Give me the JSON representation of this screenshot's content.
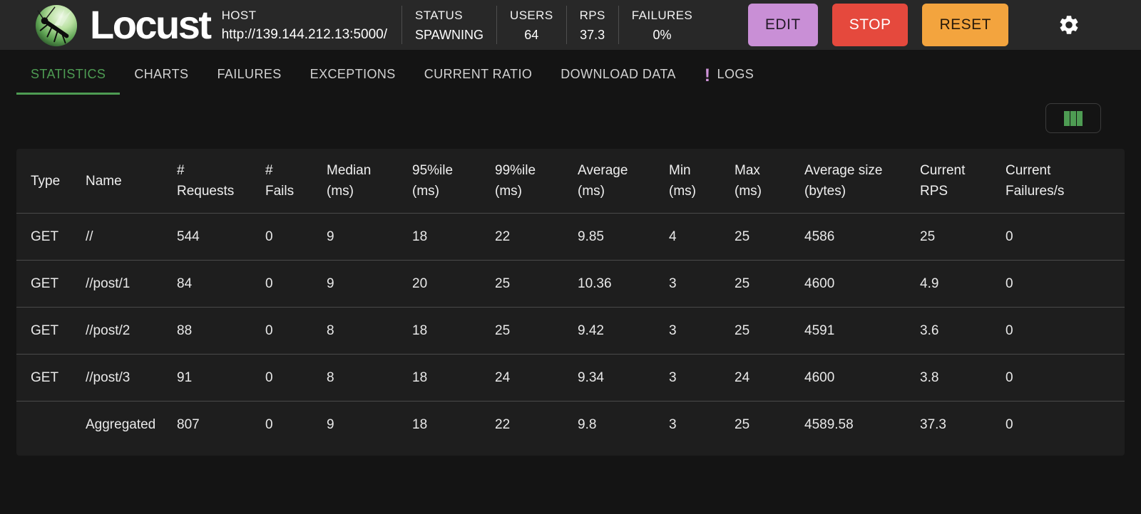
{
  "colors": {
    "accent_green": "#4e9c53",
    "edit_button_bg": "#c98fd6",
    "stop_button_bg": "#e5493d",
    "reset_button_bg": "#f3a43e",
    "logs_alert": "#ce93d8",
    "topbar_bg": "#282828",
    "page_bg": "#141414",
    "table_bg": "#1e1e1e"
  },
  "header": {
    "brand": "Locust",
    "host": {
      "label": "HOST",
      "value": "http://139.144.212.13:5000/"
    },
    "stats": [
      {
        "label": "STATUS",
        "value": "SPAWNING"
      },
      {
        "label": "USERS",
        "value": "64"
      },
      {
        "label": "RPS",
        "value": "37.3"
      },
      {
        "label": "FAILURES",
        "value": "0%"
      }
    ],
    "buttons": {
      "edit": "EDIT",
      "stop": "STOP",
      "reset": "RESET"
    }
  },
  "tabs": {
    "items": [
      "STATISTICS",
      "CHARTS",
      "FAILURES",
      "EXCEPTIONS",
      "CURRENT RATIO",
      "DOWNLOAD DATA",
      "LOGS"
    ],
    "active": "STATISTICS",
    "logs_badge": "!"
  },
  "table": {
    "columns": [
      {
        "l1": "Type",
        "l2": ""
      },
      {
        "l1": "Name",
        "l2": ""
      },
      {
        "l1": "#",
        "l2": "Requests"
      },
      {
        "l1": "#",
        "l2": "Fails"
      },
      {
        "l1": "Median",
        "l2": "(ms)"
      },
      {
        "l1": "95%ile",
        "l2": "(ms)"
      },
      {
        "l1": "99%ile",
        "l2": "(ms)"
      },
      {
        "l1": "Average",
        "l2": "(ms)"
      },
      {
        "l1": "Min",
        "l2": "(ms)"
      },
      {
        "l1": "Max",
        "l2": "(ms)"
      },
      {
        "l1": "Average size",
        "l2": "(bytes)"
      },
      {
        "l1": "Current",
        "l2": "RPS"
      },
      {
        "l1": "Current",
        "l2": "Failures/s"
      }
    ],
    "rows": [
      [
        "GET",
        "//",
        "544",
        "0",
        "9",
        "18",
        "22",
        "9.85",
        "4",
        "25",
        "4586",
        "25",
        "0"
      ],
      [
        "GET",
        "//post/1",
        "84",
        "0",
        "9",
        "20",
        "25",
        "10.36",
        "3",
        "25",
        "4600",
        "4.9",
        "0"
      ],
      [
        "GET",
        "//post/2",
        "88",
        "0",
        "8",
        "18",
        "25",
        "9.42",
        "3",
        "25",
        "4591",
        "3.6",
        "0"
      ],
      [
        "GET",
        "//post/3",
        "91",
        "0",
        "8",
        "18",
        "24",
        "9.34",
        "3",
        "24",
        "4600",
        "3.8",
        "0"
      ],
      [
        "",
        "Aggregated",
        "807",
        "0",
        "9",
        "18",
        "22",
        "9.8",
        "3",
        "25",
        "4589.58",
        "37.3",
        "0"
      ]
    ]
  }
}
